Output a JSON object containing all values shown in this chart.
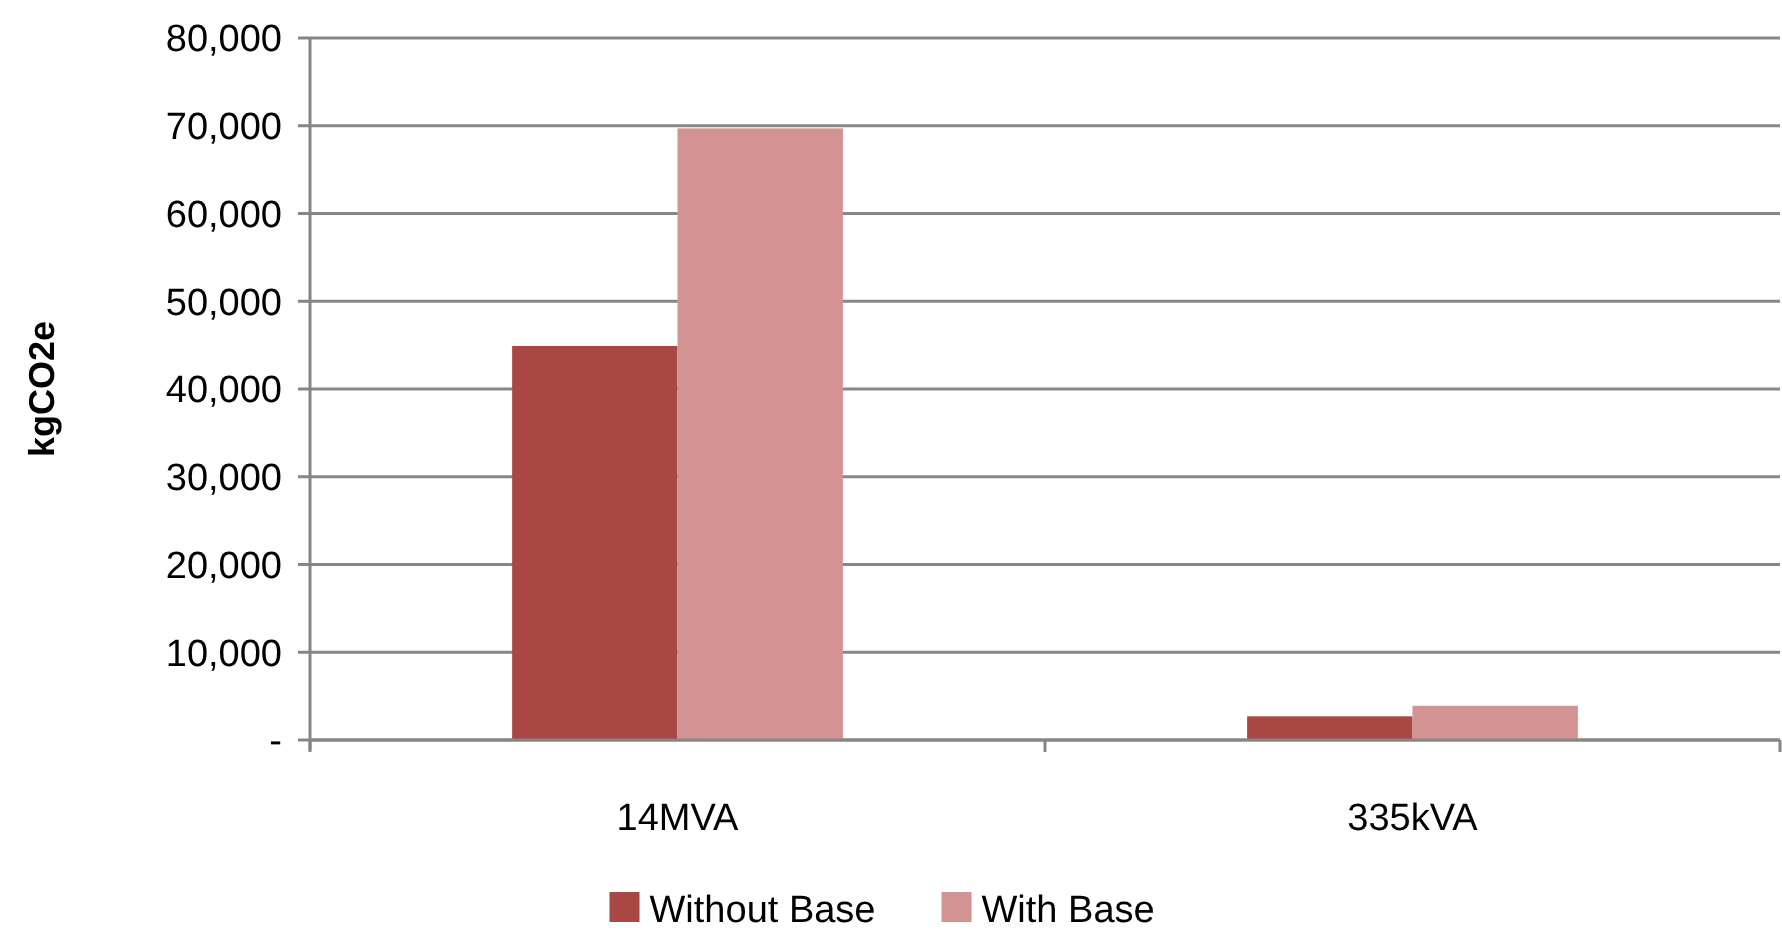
{
  "chart_data": {
    "type": "bar",
    "ylabel": "kgCO2e",
    "categories": [
      "14MVA",
      "335kVA"
    ],
    "series": [
      {
        "name": "Without Base",
        "color": "#a94744",
        "values": [
          44900,
          2700
        ]
      },
      {
        "name": "With Base",
        "color": "#d39392",
        "values": [
          69700,
          3900
        ]
      }
    ],
    "ylim": [
      0,
      80000
    ],
    "yticks": [
      {
        "value": 0,
        "label": "-"
      },
      {
        "value": 10000,
        "label": "10,000"
      },
      {
        "value": 20000,
        "label": "20,000"
      },
      {
        "value": 30000,
        "label": "30,000"
      },
      {
        "value": 40000,
        "label": "40,000"
      },
      {
        "value": 50000,
        "label": "50,000"
      },
      {
        "value": 60000,
        "label": "60,000"
      },
      {
        "value": 70000,
        "label": "70,000"
      },
      {
        "value": 80000,
        "label": "80,000"
      }
    ],
    "grid": "y",
    "legend": "bottom"
  }
}
